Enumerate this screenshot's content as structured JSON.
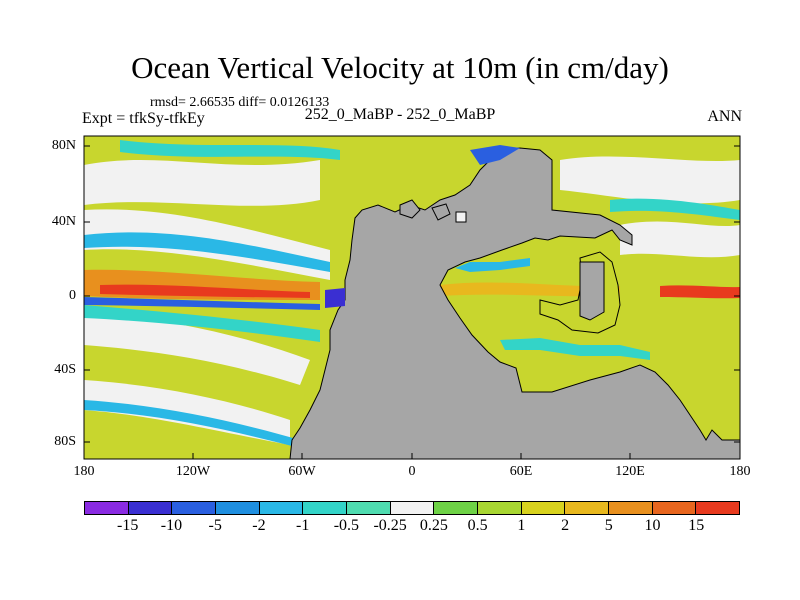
{
  "figure": {
    "title": "Ocean Vertical Velocity at 10m (in cm/day)",
    "stats": "rmsd= 2.66535  diff= 0.0126133",
    "expt": "Expt = tfkSy-tfkEy",
    "experiments": "252_0_MaBP - 252_0_MaBP",
    "season": "ANN"
  },
  "axes": {
    "y_labels": [
      "80N",
      "40N",
      "0",
      "40S",
      "80S"
    ],
    "x_labels": [
      "180",
      "120W",
      "60W",
      "0",
      "60E",
      "120E",
      "180"
    ]
  },
  "colorbar": {
    "labels": [
      "-15",
      "-10",
      "-5",
      "-2",
      "-1",
      "-0.5",
      "-0.25",
      "0.25",
      "0.5",
      "1",
      "2",
      "5",
      "10",
      "15"
    ],
    "colors": [
      "#8a2be2",
      "#3a2fd2",
      "#2a5fe0",
      "#1f8fe0",
      "#2ab8e6",
      "#33d4c8",
      "#4fdcb0",
      "#f2f2f2",
      "#6ed246",
      "#a8d632",
      "#d8d21e",
      "#e8b81e",
      "#e8901e",
      "#e8661e",
      "#e83a1e"
    ]
  },
  "colors": {
    "land": "#a6a6a6",
    "ocean_base": "#c8d62e"
  }
}
